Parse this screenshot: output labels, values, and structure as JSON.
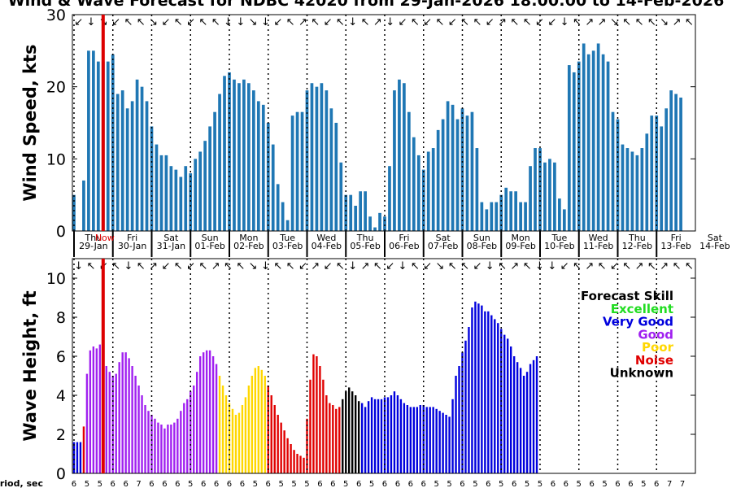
{
  "title": "Wind & Wave Forecast for NDBC 42020 from 29-Jan-2026 18:00:00 to 14-Feb-2026",
  "period_label": "Period, sec",
  "now_label": "Now",
  "colors": {
    "excellent": "#22dd22",
    "very_good": "#0000dd",
    "good": "#a020f0",
    "poor": "#ffd700",
    "noise": "#e00000",
    "unknown": "#000000",
    "wind_bar": "#1f77b4",
    "now_line": "#dd0000"
  },
  "legend": {
    "title": "Forecast Skill",
    "entries": [
      {
        "key": "excellent",
        "label": "Excellent"
      },
      {
        "key": "very_good",
        "label": "Very Good"
      },
      {
        "key": "good",
        "label": "Good"
      },
      {
        "key": "poor",
        "label": "Poor"
      },
      {
        "key": "noise",
        "label": "Noise"
      },
      {
        "key": "unknown",
        "label": "Unknown"
      }
    ]
  },
  "chart_data": [
    {
      "type": "bar",
      "title": "Wind & Wave Forecast for NDBC 42020 from 29-Jan-2026 18:00:00 to 14-Feb-2026",
      "ylabel": "Wind Speed, kts",
      "ylim": [
        0,
        30
      ],
      "yticks": [
        0,
        10,
        20,
        30
      ],
      "x_unit": "hours since 29-Jan 00:00",
      "xlim": [
        -1,
        384
      ],
      "day_labels": [
        {
          "day": "Thu",
          "date": "29-Jan"
        },
        {
          "day": "Fri",
          "date": "30-Jan"
        },
        {
          "day": "Sat",
          "date": "31-Jan"
        },
        {
          "day": "Sun",
          "date": "01-Feb"
        },
        {
          "day": "Mon",
          "date": "02-Feb"
        },
        {
          "day": "Tue",
          "date": "03-Feb"
        },
        {
          "day": "Wed",
          "date": "04-Feb"
        },
        {
          "day": "Thu",
          "date": "05-Feb"
        },
        {
          "day": "Fri",
          "date": "06-Feb"
        },
        {
          "day": "Sat",
          "date": "07-Feb"
        },
        {
          "day": "Sun",
          "date": "08-Feb"
        },
        {
          "day": "Mon",
          "date": "09-Feb"
        },
        {
          "day": "Tue",
          "date": "10-Feb"
        },
        {
          "day": "Wed",
          "date": "11-Feb"
        },
        {
          "day": "Thu",
          "date": "12-Feb"
        },
        {
          "day": "Fri",
          "date": "13-Feb"
        },
        {
          "day": "Sat",
          "date": "14-Feb"
        }
      ],
      "now_hour": 18,
      "wind_start_hour": 0,
      "wind_step_hours": 3,
      "wind_values": [
        5,
        0,
        7,
        25,
        25,
        23.5,
        23.5,
        23.5,
        24.5,
        19,
        19.5,
        17,
        18,
        21,
        20,
        18,
        14.5,
        12,
        10.5,
        10.5,
        9,
        8.5,
        7.5,
        9,
        8,
        10,
        11,
        12.5,
        14.5,
        16.5,
        19,
        21.5,
        22,
        21,
        20.5,
        21,
        20.5,
        19.5,
        18,
        17.5,
        15,
        12,
        6.5,
        4,
        1.5,
        16,
        16.5,
        16.5,
        19.5,
        20.5,
        20,
        20.5,
        19.5,
        17,
        15,
        9.5,
        5,
        5,
        3.5,
        5.5,
        5.5,
        2,
        0.5,
        2.5,
        2,
        9,
        19.5,
        21,
        20.5,
        16.5,
        13,
        10.5,
        8.5,
        11,
        11.5,
        14,
        15.5,
        18,
        17.5,
        15.5,
        17,
        16,
        16.5,
        11.5,
        4,
        3,
        4,
        4,
        5,
        6,
        5.5,
        5.5,
        4,
        4,
        9,
        11.5,
        11.5,
        9.5,
        10,
        9.5,
        4.5,
        3,
        23,
        22,
        23.5,
        26,
        24.5,
        25,
        26,
        24.5,
        23.5,
        16.5,
        15.5,
        12,
        11.5,
        11,
        10.5,
        11.5,
        13.5,
        16,
        16,
        14.5,
        17,
        19.5,
        19,
        18.5
      ],
      "wind_dir_arrows": [
        "↙",
        "↓",
        "↘",
        "↙",
        "↖",
        "↖",
        "↘",
        "↙",
        "↖",
        "↙",
        "↖",
        "↖",
        "↓",
        "↓",
        "↘",
        "↓",
        "↙",
        "↖",
        "↗",
        "↖",
        "↙",
        "↖",
        "↓",
        "↖",
        "↗",
        "↓",
        "↙",
        "↖",
        "↙",
        "↖",
        "↙",
        "↖",
        "↖",
        "↙",
        "↗",
        "↖",
        "↖",
        "↙",
        "↙",
        "↓",
        "↖",
        "↗",
        "↗",
        "↘",
        "↖",
        "↖",
        "↖",
        "↘",
        "↗",
        "↖"
      ]
    },
    {
      "type": "bar",
      "ylabel": "Wave Height, ft",
      "ylim": [
        0,
        11
      ],
      "yticks": [
        0,
        2,
        4,
        6,
        8,
        10
      ],
      "wave_start_hour": 0,
      "wave_step_hours": 2,
      "wave_values": [
        1.6,
        1.6,
        1.6,
        2.4,
        5.1,
        6.3,
        6.5,
        6.4,
        6.6,
        5.7,
        5.5,
        5.2,
        5.0,
        5.1,
        5.7,
        6.2,
        6.2,
        5.9,
        5.5,
        5.0,
        4.5,
        4.0,
        3.5,
        3.2,
        3.0,
        2.8,
        2.6,
        2.5,
        2.3,
        2.5,
        2.5,
        2.6,
        2.8,
        3.2,
        3.6,
        3.8,
        4.2,
        4.5,
        5.2,
        6.0,
        6.2,
        6.3,
        6.3,
        6.0,
        5.6,
        5.0,
        4.5,
        4.0,
        3.6,
        3.3,
        3.0,
        3.1,
        3.5,
        3.9,
        4.5,
        5.0,
        5.4,
        5.5,
        5.3,
        5.0,
        4.5,
        4.0,
        3.5,
        3.0,
        2.6,
        2.2,
        1.8,
        1.5,
        1.2,
        1.0,
        0.9,
        0.8,
        2.8,
        4.8,
        6.1,
        6.0,
        5.5,
        4.8,
        4.0,
        3.6,
        3.5,
        3.3,
        3.4,
        3.8,
        4.2,
        4.4,
        4.2,
        4.0,
        3.7,
        3.6,
        3.4,
        3.7,
        3.9,
        3.8,
        3.8,
        3.8,
        3.9,
        3.9,
        4.0,
        4.2,
        4.0,
        3.8,
        3.6,
        3.5,
        3.4,
        3.4,
        3.4,
        3.5,
        3.5,
        3.4,
        3.4,
        3.4,
        3.3,
        3.2,
        3.1,
        3.0,
        2.9,
        3.8,
        5.0,
        5.5,
        6.2,
        6.8,
        7.5,
        8.5,
        8.8,
        8.7,
        8.6,
        8.3,
        8.3,
        8.1,
        7.9,
        7.7,
        7.4,
        7.1,
        6.9,
        6.5,
        6.0,
        5.7,
        5.4,
        5.0,
        5.2,
        5.6,
        5.8,
        6.0
      ],
      "wave_skill": [
        "very_good",
        "very_good",
        "very_good",
        "noise",
        "good",
        "good",
        "good",
        "good",
        "good",
        "good",
        "good",
        "good",
        "good",
        "good",
        "good",
        "good",
        "good",
        "good",
        "good",
        "good",
        "good",
        "good",
        "good",
        "good",
        "good",
        "good",
        "good",
        "good",
        "good",
        "good",
        "good",
        "good",
        "good",
        "good",
        "good",
        "good",
        "good",
        "good",
        "good",
        "good",
        "good",
        "good",
        "good",
        "good",
        "good",
        "poor",
        "poor",
        "poor",
        "poor",
        "poor",
        "poor",
        "poor",
        "poor",
        "poor",
        "poor",
        "poor",
        "poor",
        "poor",
        "poor",
        "poor",
        "noise",
        "noise",
        "noise",
        "noise",
        "noise",
        "noise",
        "noise",
        "noise",
        "noise",
        "noise",
        "noise",
        "noise",
        "noise",
        "noise",
        "noise",
        "noise",
        "noise",
        "noise",
        "noise",
        "noise",
        "noise",
        "noise",
        "noise",
        "unknown",
        "unknown",
        "unknown",
        "unknown",
        "unknown",
        "unknown",
        "very_good",
        "very_good",
        "very_good",
        "very_good",
        "very_good",
        "very_good",
        "very_good",
        "very_good",
        "very_good",
        "very_good",
        "very_good",
        "very_good",
        "very_good",
        "very_good",
        "very_good",
        "very_good",
        "very_good",
        "very_good",
        "very_good",
        "very_good",
        "very_good",
        "very_good",
        "very_good",
        "very_good",
        "very_good",
        "very_good",
        "very_good",
        "very_good",
        "very_good",
        "very_good",
        "very_good",
        "very_good",
        "very_good",
        "very_good",
        "very_good",
        "very_good",
        "very_good",
        "very_good",
        "very_good",
        "very_good",
        "very_good",
        "very_good",
        "very_good",
        "very_good",
        "very_good",
        "very_good",
        "very_good",
        "very_good",
        "very_good",
        "very_good",
        "very_good"
      ],
      "wave_dir_arrows": [
        "↓",
        "↖",
        "↙",
        "↖",
        "↓",
        "↖",
        "↗",
        "↙",
        "↖",
        "↙",
        "↖",
        "↗",
        "↖",
        "↖",
        "↘",
        "↓",
        "↖",
        "↖",
        "↙",
        "↗",
        "↙",
        "↖",
        "↓",
        "↗",
        "↖",
        "↙",
        "↓",
        "↖",
        "↙",
        "↘",
        "↖",
        "↖",
        "↙",
        "↓",
        "↖",
        "↗",
        "↖",
        "↓",
        "↓",
        "↙",
        "↖",
        "↗",
        "↖",
        "↙",
        "↖",
        "↗",
        "↖",
        "↗",
        "↖",
        "↖"
      ],
      "periods_start_hour": 0,
      "periods_step_hours": 8,
      "periods": [
        "6",
        "5",
        "5",
        "6",
        "6",
        "7",
        "6",
        "6",
        "6",
        "5",
        "6",
        "6",
        "6",
        "6",
        "5",
        "6",
        "5",
        "5",
        "5",
        "6",
        "6",
        "5",
        "6",
        "5",
        "6",
        "6",
        "6",
        "6",
        "5",
        "5",
        "6",
        "5",
        "6",
        "5",
        "6",
        "5",
        "5",
        "6",
        "6",
        "5",
        "6",
        "5",
        "6",
        "6",
        "5",
        "6",
        "7",
        "7"
      ]
    }
  ]
}
